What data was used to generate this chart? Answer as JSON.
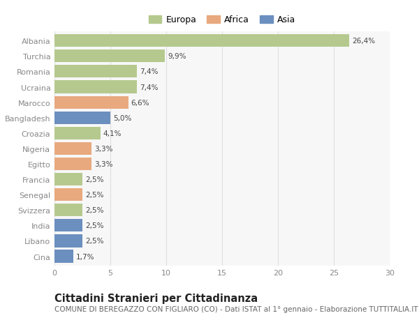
{
  "categories": [
    "Albania",
    "Turchia",
    "Romania",
    "Ucraina",
    "Marocco",
    "Bangladesh",
    "Croazia",
    "Nigeria",
    "Egitto",
    "Francia",
    "Senegal",
    "Svizzera",
    "India",
    "Libano",
    "Cina"
  ],
  "values": [
    26.4,
    9.9,
    7.4,
    7.4,
    6.6,
    5.0,
    4.1,
    3.3,
    3.3,
    2.5,
    2.5,
    2.5,
    2.5,
    2.5,
    1.7
  ],
  "labels": [
    "26,4%",
    "9,9%",
    "7,4%",
    "7,4%",
    "6,6%",
    "5,0%",
    "4,1%",
    "3,3%",
    "3,3%",
    "2,5%",
    "2,5%",
    "2,5%",
    "2,5%",
    "2,5%",
    "1,7%"
  ],
  "continents": [
    "Europa",
    "Europa",
    "Europa",
    "Europa",
    "Africa",
    "Asia",
    "Europa",
    "Africa",
    "Africa",
    "Europa",
    "Africa",
    "Europa",
    "Asia",
    "Asia",
    "Asia"
  ],
  "colors": {
    "Europa": "#b5c98e",
    "Africa": "#e8a97e",
    "Asia": "#6b8fbf"
  },
  "xlim": [
    0,
    30
  ],
  "xticks": [
    0,
    5,
    10,
    15,
    20,
    25,
    30
  ],
  "title": "Cittadini Stranieri per Cittadinanza",
  "subtitle": "COMUNE DI BEREGAZZO CON FIGLIARO (CO) - Dati ISTAT al 1° gennaio - Elaborazione TUTTITALIA.IT",
  "background_color": "#ffffff",
  "axes_bg_color": "#f7f7f7",
  "bar_height": 0.82,
  "title_fontsize": 10.5,
  "subtitle_fontsize": 7.5,
  "label_fontsize": 7.5,
  "tick_fontsize": 8,
  "legend_fontsize": 9,
  "tick_color": "#888888",
  "label_color": "#444444",
  "grid_color": "#e0e0e0"
}
